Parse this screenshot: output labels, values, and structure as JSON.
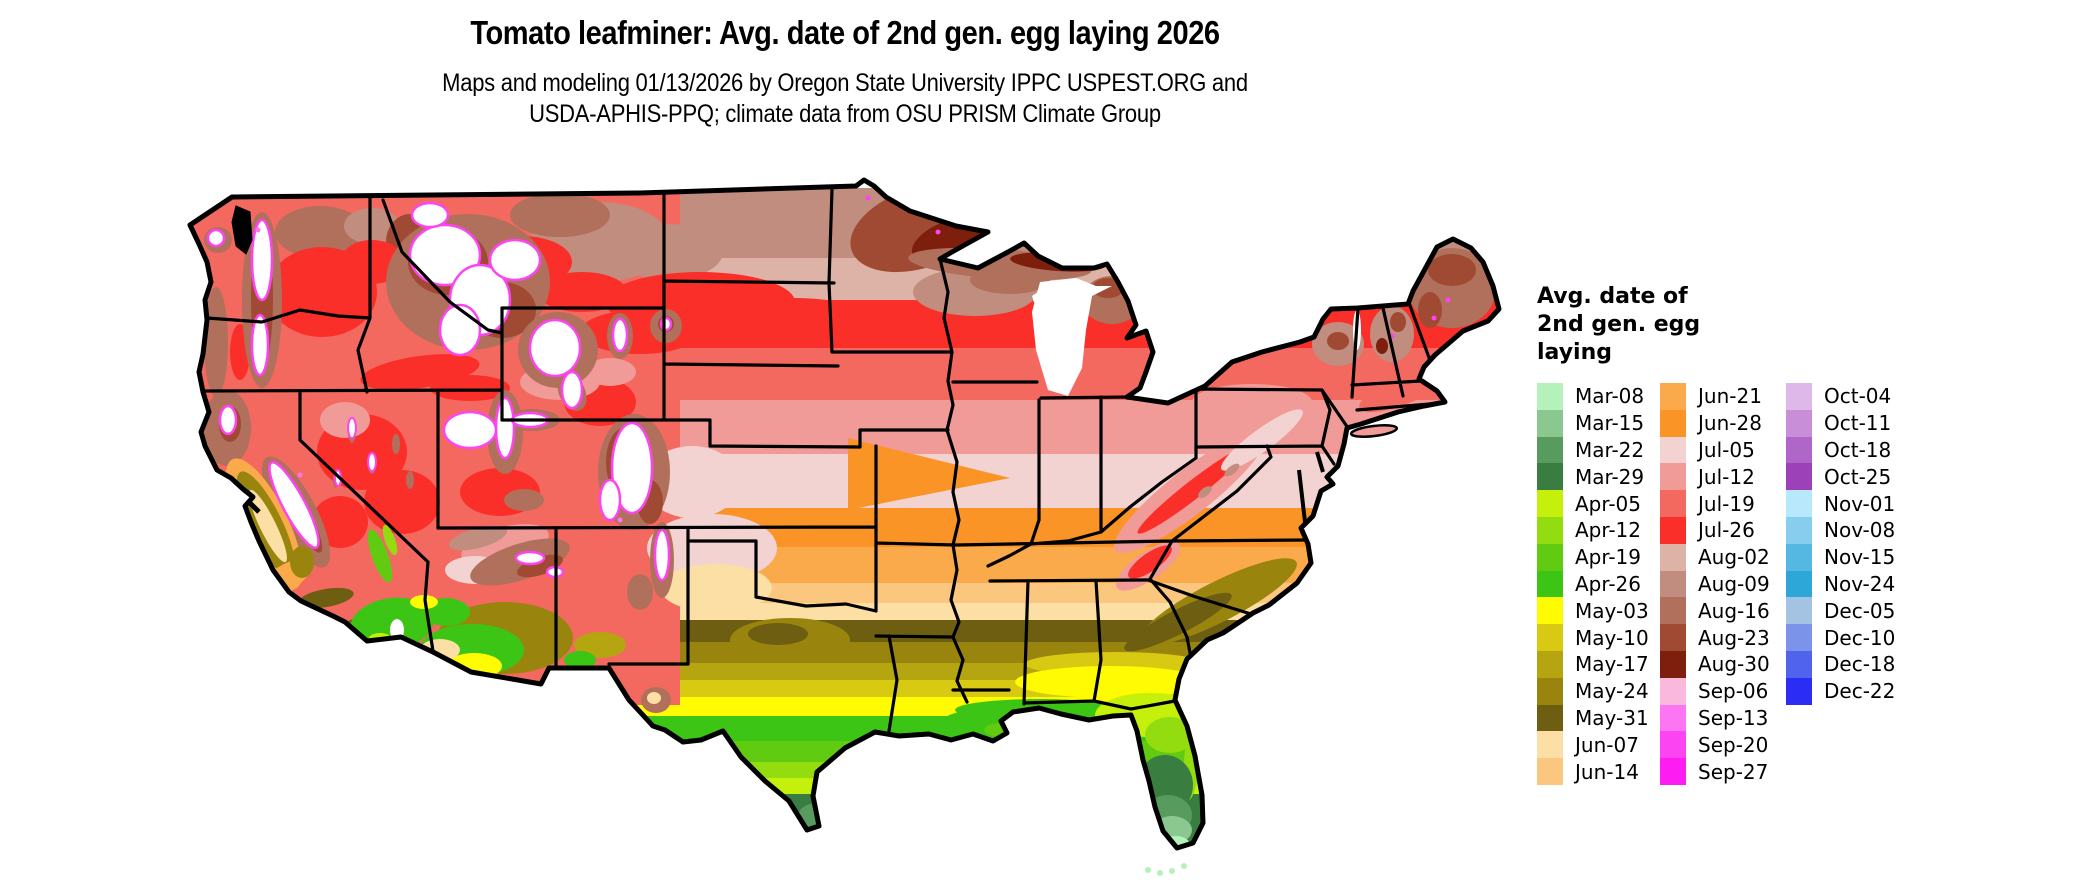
{
  "header": {
    "title": "Tomato leafminer: Avg. date of 2nd gen. egg laying 2026",
    "subtitle_line1": "Maps and modeling 01/13/2026 by Oregon State University IPPC USPEST.ORG and",
    "subtitle_line2": "USDA-APHIS-PPQ; climate data from OSU PRISM Climate Group"
  },
  "legend": {
    "title_lines": [
      "Avg. date of",
      "2nd gen. egg",
      "laying"
    ],
    "columns": [
      [
        {
          "label": "Mar-08",
          "color": "#b5f2bb"
        },
        {
          "label": "Mar-15",
          "color": "#8bc88f"
        },
        {
          "label": "Mar-22",
          "color": "#589b5e"
        },
        {
          "label": "Mar-29",
          "color": "#397d41"
        },
        {
          "label": "Apr-05",
          "color": "#c4f00c"
        },
        {
          "label": "Apr-12",
          "color": "#93dc10"
        },
        {
          "label": "Apr-19",
          "color": "#60cb11"
        },
        {
          "label": "Apr-26",
          "color": "#3cc514"
        },
        {
          "label": "May-03",
          "color": "#fefb02"
        },
        {
          "label": "May-10",
          "color": "#d8ca12"
        },
        {
          "label": "May-17",
          "color": "#b5a511"
        },
        {
          "label": "May-24",
          "color": "#99850e"
        },
        {
          "label": "May-31",
          "color": "#6e5e12"
        },
        {
          "label": "Jun-07",
          "color": "#fcdfa4"
        },
        {
          "label": "Jun-14",
          "color": "#fbc67d"
        }
      ],
      [
        {
          "label": "Jun-21",
          "color": "#fbaa4b"
        },
        {
          "label": "Jun-28",
          "color": "#fb9427"
        },
        {
          "label": "Jul-05",
          "color": "#f3d3d1"
        },
        {
          "label": "Jul-12",
          "color": "#f09b97"
        },
        {
          "label": "Jul-19",
          "color": "#f4695f"
        },
        {
          "label": "Jul-26",
          "color": "#fb2f2a"
        },
        {
          "label": "Aug-02",
          "color": "#ddb3a8"
        },
        {
          "label": "Aug-09",
          "color": "#c08d7f"
        },
        {
          "label": "Aug-16",
          "color": "#b0705c"
        },
        {
          "label": "Aug-23",
          "color": "#a04a34"
        },
        {
          "label": "Aug-30",
          "color": "#7e1f0e"
        },
        {
          "label": "Sep-06",
          "color": "#fbb8dd"
        },
        {
          "label": "Sep-13",
          "color": "#fd75f3"
        },
        {
          "label": "Sep-20",
          "color": "#fd44f2"
        },
        {
          "label": "Sep-27",
          "color": "#fd1cf1"
        }
      ],
      [
        {
          "label": "Oct-04",
          "color": "#ddb8e8"
        },
        {
          "label": "Oct-11",
          "color": "#c98ed8"
        },
        {
          "label": "Oct-18",
          "color": "#b066c9"
        },
        {
          "label": "Oct-25",
          "color": "#9c41b8"
        },
        {
          "label": "Nov-01",
          "color": "#b7e8fb"
        },
        {
          "label": "Nov-08",
          "color": "#87cdee"
        },
        {
          "label": "Nov-15",
          "color": "#54b8e3"
        },
        {
          "label": "Nov-24",
          "color": "#2da6d8"
        },
        {
          "label": "Dec-05",
          "color": "#a4c3e3"
        },
        {
          "label": "Dec-10",
          "color": "#7b93e8"
        },
        {
          "label": "Dec-18",
          "color": "#4f63ed"
        },
        {
          "label": "Dec-22",
          "color": "#2b2df4"
        }
      ]
    ]
  },
  "map": {
    "background_color": "#ffffff",
    "no_completion_color": "#ffffff",
    "state_border_color": "#000000"
  }
}
